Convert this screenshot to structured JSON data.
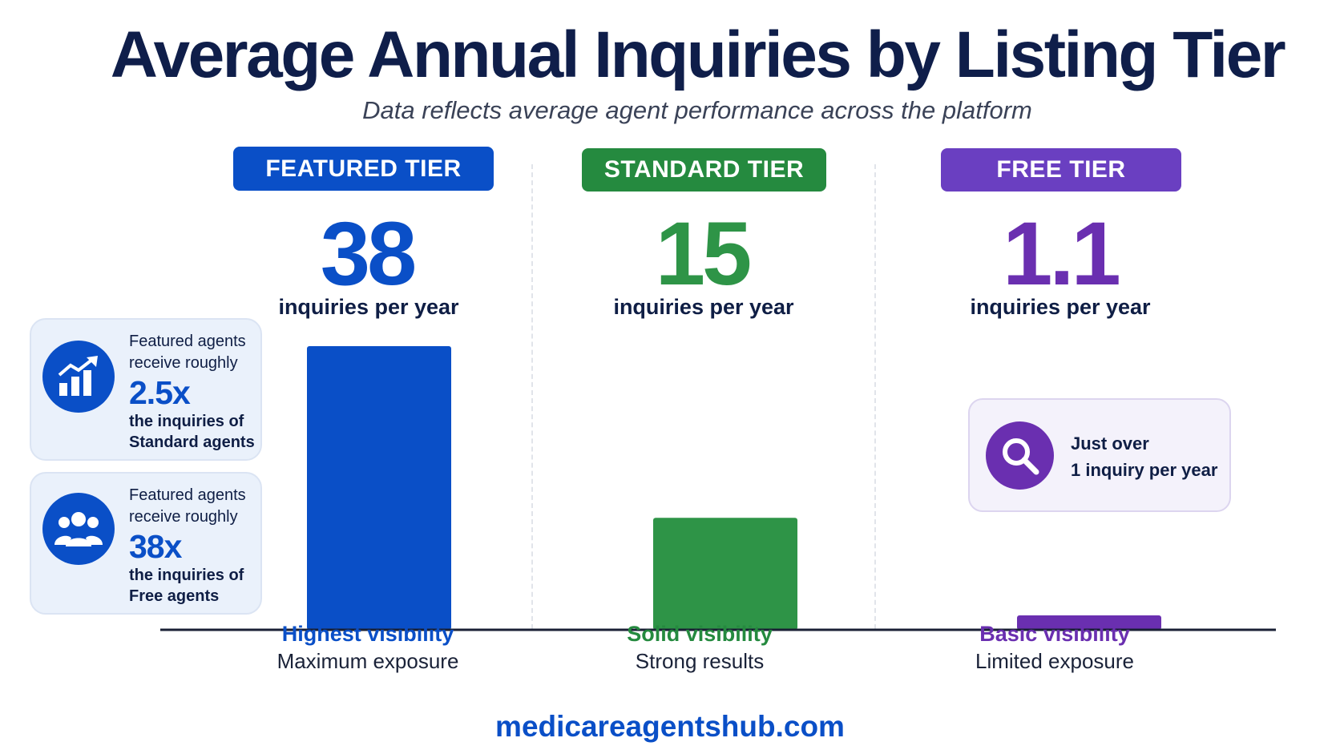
{
  "chart_data": {
    "type": "bar",
    "title": "Average Annual Inquiries by Listing Tier",
    "subtitle": "Data reflects average agent performance across the platform",
    "categories": [
      "FEATURED TIER",
      "STANDARD TIER",
      "FREE TIER"
    ],
    "values": [
      38,
      15,
      1.1
    ],
    "value_labels": [
      "38",
      "15",
      "1.1"
    ],
    "unit_label": "inquiries per year",
    "colors": [
      "#0a4fc7",
      "#2e9447",
      "#6a2fb0"
    ],
    "category_headlines": [
      "Highest visibility",
      "Solid visibility",
      "Basic visibility"
    ],
    "category_sublines": [
      "Maximum exposure",
      "Strong results",
      "Limited exposure"
    ],
    "ylim": [
      0,
      38
    ],
    "grid": false,
    "legend": "none"
  },
  "callouts": {
    "featured_vs_standard": {
      "icon": "growth-chart-icon",
      "line1": "Featured agents",
      "line2": "receive roughly",
      "multiplier": "2.5x",
      "line3": "the inquiries of",
      "line4": "Standard agents"
    },
    "featured_vs_free": {
      "icon": "people-group-icon",
      "line1": "Featured agents",
      "line2": "receive roughly",
      "multiplier": "38x",
      "line3": "the inquiries of",
      "line4": "Free agents"
    },
    "free_note": {
      "icon": "magnifier-icon",
      "line1": "Just over",
      "line2": "1 inquiry per year"
    }
  },
  "footer": {
    "url": "medicareagentshub.com"
  }
}
